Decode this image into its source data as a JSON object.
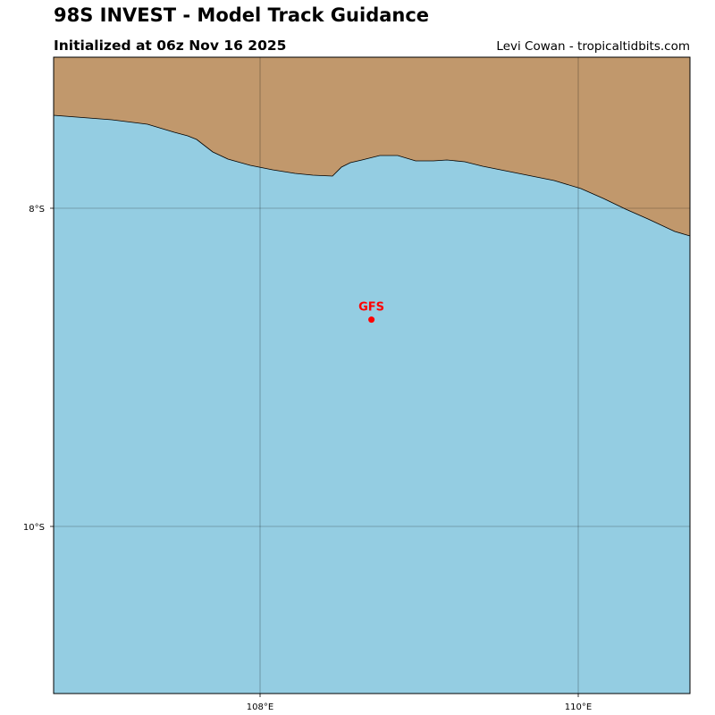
{
  "header": {
    "title": "98S INVEST - Model Track Guidance",
    "subtitle": "Initialized at 06z Nov 16 2025",
    "credit": "Levi Cowan - tropicaltidbits.com"
  },
  "map": {
    "colors": {
      "ocean": "#94cde2",
      "land": "#c1986c",
      "coastline": "#000000",
      "gridline": "#000000"
    },
    "latitude_labels": [
      "8°S",
      "10°S"
    ],
    "longitude_labels": [
      "108°E",
      "110°E"
    ]
  },
  "models": [
    {
      "name": "GFS",
      "color": "#ff0000",
      "lat": -8.7,
      "lon": 108.7
    }
  ]
}
